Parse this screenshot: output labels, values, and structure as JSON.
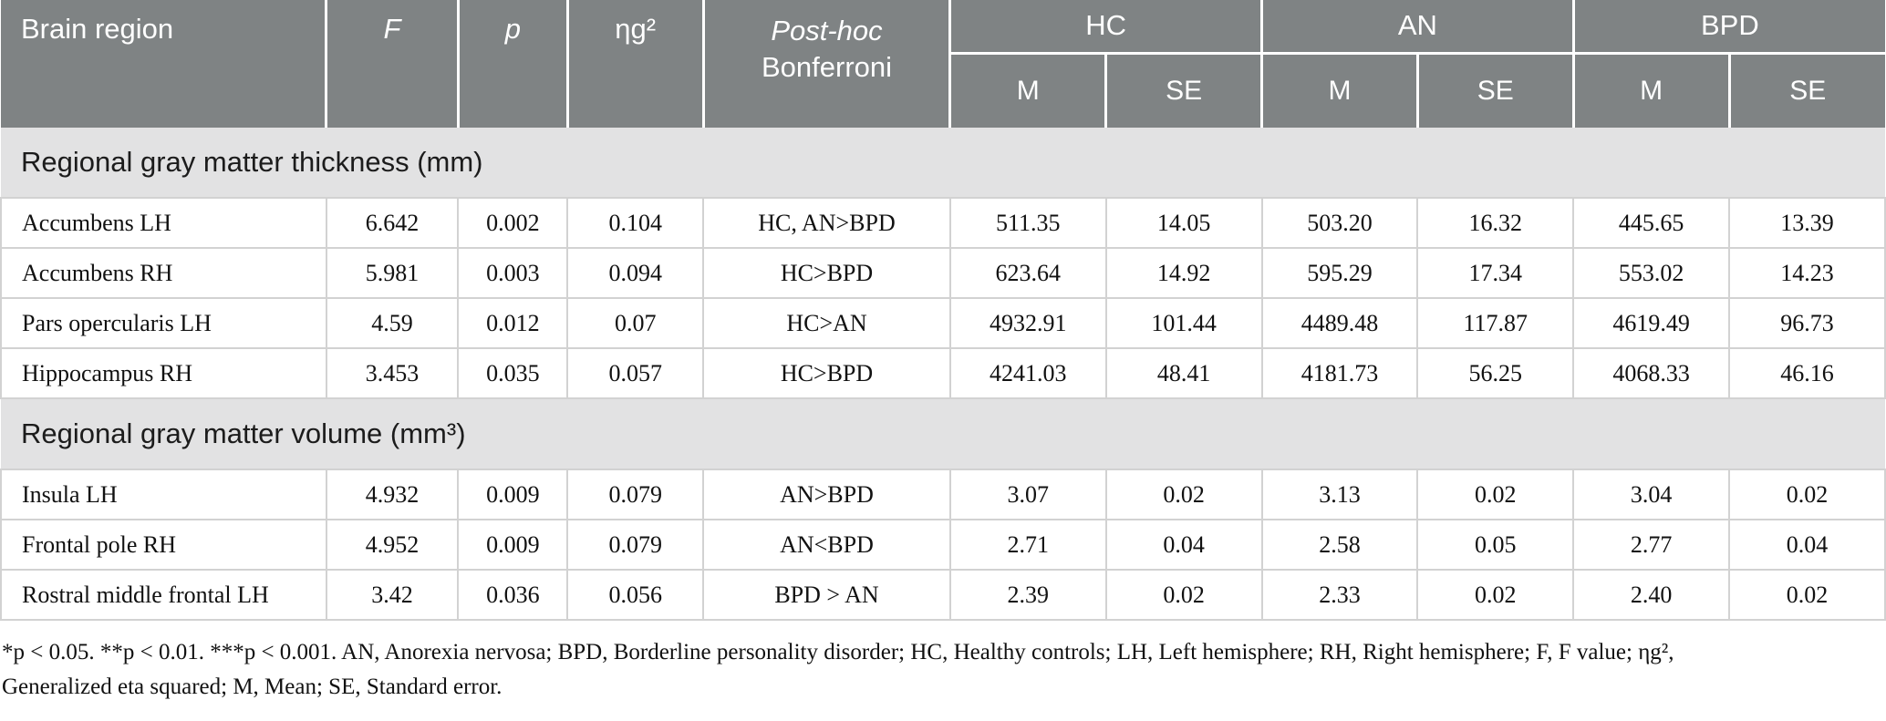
{
  "table": {
    "header": {
      "brain_region": "Brain region",
      "f_label": "F",
      "p_label": "p",
      "eta_label": "ηg²",
      "posthoc_line1": "Post-hoc",
      "posthoc_line2": "Bonferroni",
      "groups": [
        {
          "label": "HC"
        },
        {
          "label": "AN"
        },
        {
          "label": "BPD"
        }
      ],
      "mean_label": "M",
      "se_label": "SE"
    },
    "sections": [
      {
        "title": "Regional gray matter thickness (mm)",
        "rows": [
          {
            "region": "Accumbens LH",
            "f": "6.642",
            "p": "0.002",
            "eta": "0.104",
            "posthoc": "HC, AN>BPD",
            "hc_m": "511.35",
            "hc_se": "14.05",
            "an_m": "503.20",
            "an_se": "16.32",
            "bpd_m": "445.65",
            "bpd_se": "13.39"
          },
          {
            "region": "Accumbens RH",
            "f": "5.981",
            "p": "0.003",
            "eta": "0.094",
            "posthoc": "HC>BPD",
            "hc_m": "623.64",
            "hc_se": "14.92",
            "an_m": "595.29",
            "an_se": "17.34",
            "bpd_m": "553.02",
            "bpd_se": "14.23"
          },
          {
            "region": "Pars opercularis LH",
            "f": "4.59",
            "p": "0.012",
            "eta": "0.07",
            "posthoc": "HC>AN",
            "hc_m": "4932.91",
            "hc_se": "101.44",
            "an_m": "4489.48",
            "an_se": "117.87",
            "bpd_m": "4619.49",
            "bpd_se": "96.73"
          },
          {
            "region": "Hippocampus RH",
            "f": "3.453",
            "p": "0.035",
            "eta": "0.057",
            "posthoc": "HC>BPD",
            "hc_m": "4241.03",
            "hc_se": "48.41",
            "an_m": "4181.73",
            "an_se": "56.25",
            "bpd_m": "4068.33",
            "bpd_se": "46.16"
          }
        ]
      },
      {
        "title": "Regional gray matter volume (mm³)",
        "rows": [
          {
            "region": "Insula LH",
            "f": "4.932",
            "p": "0.009",
            "eta": "0.079",
            "posthoc": "AN>BPD",
            "hc_m": "3.07",
            "hc_se": "0.02",
            "an_m": "3.13",
            "an_se": "0.02",
            "bpd_m": "3.04",
            "bpd_se": "0.02"
          },
          {
            "region": "Frontal pole RH",
            "f": "4.952",
            "p": "0.009",
            "eta": "0.079",
            "posthoc": "AN<BPD",
            "hc_m": "2.71",
            "hc_se": "0.04",
            "an_m": "2.58",
            "an_se": "0.05",
            "bpd_m": "2.77",
            "bpd_se": "0.04"
          },
          {
            "region": "Rostral middle frontal LH",
            "f": "3.42",
            "p": "0.036",
            "eta": "0.056",
            "posthoc": "BPD > AN",
            "hc_m": "2.39",
            "hc_se": "0.02",
            "an_m": "2.33",
            "an_se": "0.02",
            "bpd_m": "2.40",
            "bpd_se": "0.02"
          }
        ]
      }
    ],
    "footnote_line1": "*p < 0.05. **p < 0.01. ***p < 0.001. AN, Anorexia nervosa; BPD, Borderline personality disorder; HC, Healthy controls; LH, Left hemisphere; RH, Right hemisphere; F, F value; ηg²,",
    "footnote_line2": "Generalized eta squared; M, Mean; SE, Standard error."
  },
  "colors": {
    "header_bg": "#7f8384",
    "header_text": "#ffffff",
    "section_bg": "#e2e2e3",
    "body_bg": "#ffffff",
    "body_text": "#111111",
    "cell_border": "#d2d2d2",
    "table_bottom_border": "#9c9c9c"
  }
}
